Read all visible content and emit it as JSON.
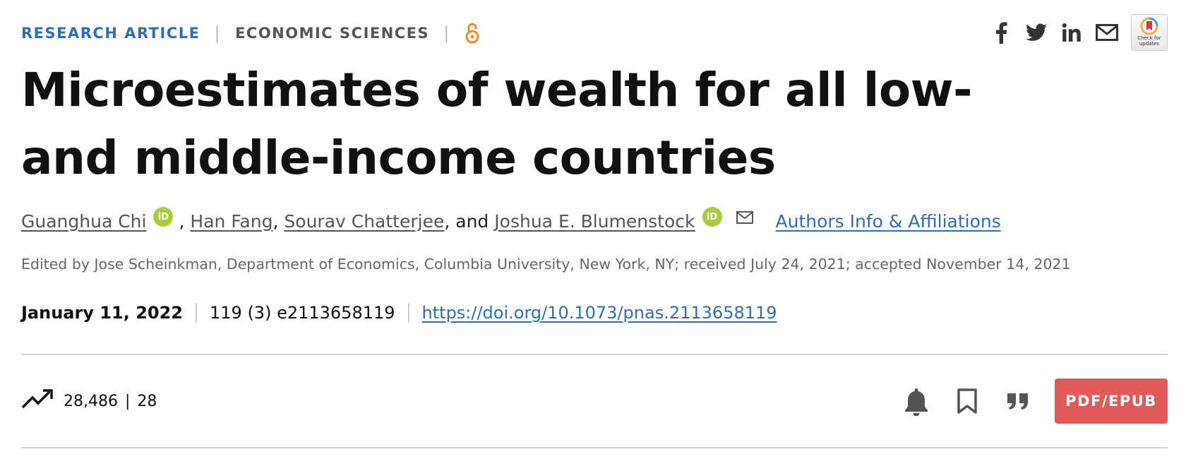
{
  "article": {
    "type": "RESEARCH ARTICLE",
    "subject": "ECONOMIC SCIENCES",
    "title": "Microestimates of wealth for all low- and middle-income countries"
  },
  "authors": {
    "list": [
      "Guanghua Chi",
      "Han Fang",
      "Sourav Chatterjee",
      "Joshua E. Blumenstock"
    ],
    "separators": [
      ",",
      ",",
      ", and"
    ],
    "orcid_label": "iD",
    "affiliations_link": "Authors Info & Affiliations"
  },
  "edited_by": "Edited by Jose Scheinkman, Department of Economics, Columbia University, New York, NY; received July 24, 2021; accepted November 14, 2021",
  "publication": {
    "date": "January 11, 2022",
    "volume": "119 (3) e2113658119",
    "doi": "https://doi.org/10.1073/pnas.2113658119"
  },
  "metrics": {
    "views": "28,486",
    "separator": "|",
    "citations": "28"
  },
  "share_icons": [
    "facebook-icon",
    "twitter-icon",
    "linkedin-icon",
    "email-icon"
  ],
  "check_for_updates": "Check for updates",
  "actions": {
    "pdf_label": "PDF/EPUB"
  },
  "colors": {
    "accent_blue": "#2f6eb5",
    "orcid_green": "#a6ce39",
    "open_access_orange": "#f08a24",
    "pdf_red": "#e05a59"
  }
}
